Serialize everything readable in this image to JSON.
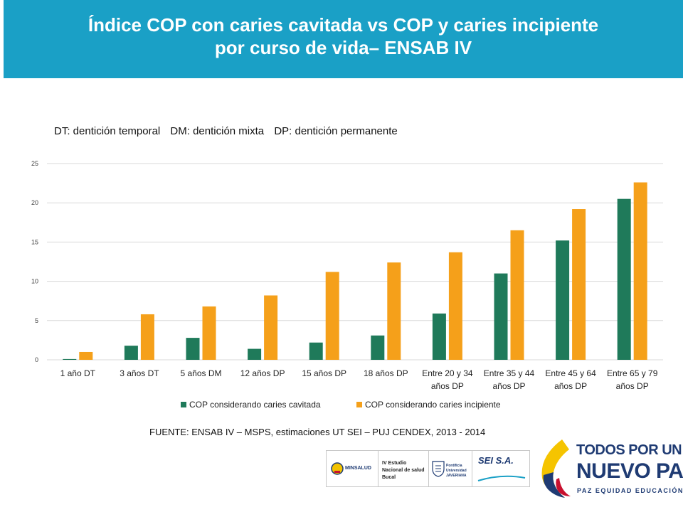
{
  "header": {
    "title_line1": "Índice COP con caries cavitada vs COP y caries incipiente",
    "title_line2": "por curso de vida– ENSAB IV"
  },
  "note": {
    "dt": "DT: dentición temporal",
    "dm": "DM: dentición mixta",
    "dp": "DP: dentición permanente"
  },
  "chart_data": {
    "type": "bar",
    "categories": [
      [
        "1 año DT"
      ],
      [
        "3 años DT"
      ],
      [
        "5 años DM"
      ],
      [
        "12 años DP"
      ],
      [
        "15 años DP"
      ],
      [
        "18 años DP"
      ],
      [
        "Entre 20 y 34",
        "años DP"
      ],
      [
        "Entre 35 y 44",
        "años DP"
      ],
      [
        "Entre 45 y 64",
        "años DP"
      ],
      [
        "Entre 65 y 79",
        "años DP"
      ]
    ],
    "series": [
      {
        "name": "COP considerando caries cavitada",
        "color": "#1f7a5a",
        "values": [
          0.1,
          1.8,
          2.8,
          1.4,
          2.2,
          3.1,
          5.9,
          11.0,
          15.2,
          20.5
        ]
      },
      {
        "name": "COP considerando caries incipiente",
        "color": "#f5a01a",
        "values": [
          1.0,
          5.8,
          6.8,
          8.2,
          11.2,
          12.4,
          13.7,
          16.5,
          19.2,
          22.6
        ]
      }
    ],
    "yticks": [
      0,
      5,
      10,
      15,
      20,
      25
    ],
    "ylim": [
      0,
      25
    ],
    "title": "",
    "xlabel": "",
    "ylabel": "",
    "legend": "bottom",
    "grid": true
  },
  "source": "FUENTE: ENSAB IV – MSPS, estimaciones UT SEI – PUJ CENDEX, 2013 - 2014",
  "logos": {
    "minsalud": "MINSALUD",
    "estudio": "IV Estudio Nacional de salud Bucal",
    "puj": "Pontificia Universidad JAVERIANA",
    "sei": "SEI S.A."
  },
  "brand": {
    "line1": "TODOS POR UN",
    "line2": "NUEVO PAÍS",
    "line3": "PAZ EQUIDAD EDUCACIÓN"
  },
  "colors": {
    "header_bg": "#1aa0c6",
    "grid": "#d9d9d9"
  }
}
